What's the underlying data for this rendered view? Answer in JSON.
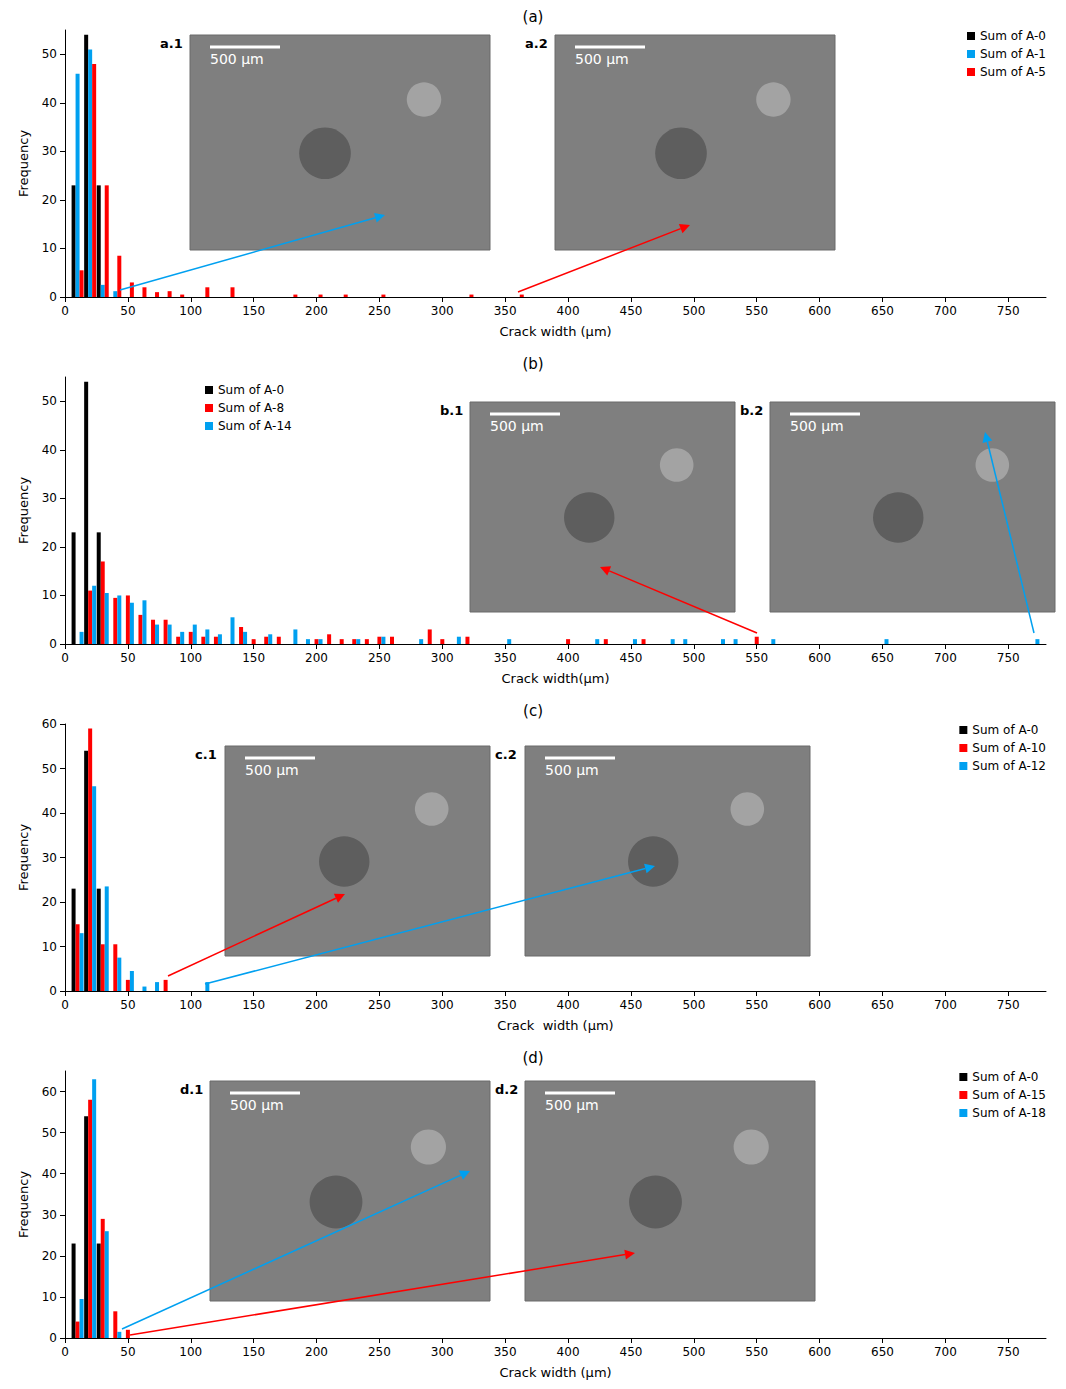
{
  "chart_data": [
    {
      "type": "bar",
      "title": "(a)",
      "x_label": "Crack width (µm)",
      "y_label": "Frequency",
      "xlim": [
        0,
        780
      ],
      "xticks": [
        0,
        50,
        100,
        150,
        200,
        250,
        300,
        350,
        400,
        450,
        500,
        550,
        600,
        650,
        700,
        750
      ],
      "ylim": [
        0,
        55
      ],
      "yticks": [
        0,
        10,
        20,
        30,
        40,
        50
      ],
      "grid": false,
      "legend": "upper right",
      "insets": [
        {
          "label": "a.1",
          "scale_bar": "500 µm"
        },
        {
          "label": "a.2",
          "scale_bar": "500 µm"
        }
      ],
      "series": [
        {
          "name": "Sum of A-0",
          "color": "#000000",
          "x": [
            10,
            20,
            30
          ],
          "values": [
            23,
            54,
            23
          ]
        },
        {
          "name": "Sum of A-1",
          "color": "#00a0f0",
          "x": [
            10,
            20,
            30,
            40
          ],
          "values": [
            46,
            51,
            2.5,
            1.2
          ]
        },
        {
          "name": "Sum of A-5",
          "color": "#ff0000",
          "x": [
            10,
            20,
            30,
            40,
            50,
            60,
            70,
            80,
            90,
            110,
            130,
            180,
            200,
            220,
            250,
            320,
            360
          ],
          "values": [
            5.5,
            48,
            23,
            8.5,
            3,
            2,
            1,
            1.2,
            0.5,
            2,
            2,
            0.5,
            0.5,
            0.5,
            0.5,
            0.5,
            0.5
          ]
        }
      ]
    },
    {
      "type": "bar",
      "title": "(b)",
      "x_label": "Crack width(µm)",
      "y_label": "Frequency",
      "xlim": [
        0,
        780
      ],
      "xticks": [
        0,
        50,
        100,
        150,
        200,
        250,
        300,
        350,
        400,
        450,
        500,
        550,
        600,
        650,
        700,
        750
      ],
      "ylim": [
        0,
        55
      ],
      "yticks": [
        0,
        10,
        20,
        30,
        40,
        50
      ],
      "grid": false,
      "legend": "upper left",
      "insets": [
        {
          "label": "b.1",
          "scale_bar": "500 µm"
        },
        {
          "label": "b.2",
          "scale_bar": "500 µm"
        }
      ],
      "series": [
        {
          "name": "Sum of A-0",
          "color": "#000000",
          "x": [
            10,
            20,
            30
          ],
          "values": [
            23,
            54,
            23
          ]
        },
        {
          "name": "Sum of A-8",
          "color": "#ff0000",
          "x": [
            20,
            30,
            40,
            50,
            60,
            70,
            80,
            90,
            100,
            110,
            120,
            140,
            150,
            160,
            170,
            200,
            210,
            220,
            230,
            240,
            250,
            260,
            290,
            300,
            320,
            400,
            430,
            460,
            550
          ],
          "values": [
            11,
            17,
            9.5,
            10,
            6,
            5,
            5,
            1.5,
            2.5,
            1.5,
            1.5,
            3.5,
            1,
            1.5,
            1.5,
            1,
            2,
            1,
            1,
            1,
            1.5,
            1.5,
            3,
            1,
            1.5,
            1,
            1,
            1,
            1.5
          ]
        },
        {
          "name": "Sum of A-14",
          "color": "#00a0f0",
          "x": [
            10,
            20,
            30,
            40,
            50,
            60,
            70,
            80,
            90,
            100,
            110,
            120,
            130,
            140,
            160,
            180,
            190,
            200,
            230,
            250,
            280,
            310,
            350,
            420,
            450,
            480,
            490,
            520,
            530,
            560,
            650,
            770
          ],
          "values": [
            2.5,
            12,
            10.5,
            10,
            8.5,
            9,
            4,
            4,
            2.5,
            4,
            3,
            2,
            5.5,
            2.5,
            2,
            3,
            1,
            1,
            1,
            1.5,
            1,
            1.5,
            1,
            1,
            1,
            1,
            1,
            1,
            1,
            1,
            1,
            1
          ]
        }
      ]
    },
    {
      "type": "bar",
      "title": "(c)",
      "x_label": "Crack  width (µm)",
      "y_label": "Frequency",
      "xlim": [
        0,
        780
      ],
      "xticks": [
        0,
        50,
        100,
        150,
        200,
        250,
        300,
        350,
        400,
        450,
        500,
        550,
        600,
        650,
        700,
        750
      ],
      "ylim": [
        0,
        60
      ],
      "yticks": [
        0,
        10,
        20,
        30,
        40,
        50,
        60
      ],
      "grid": false,
      "legend": "upper right",
      "insets": [
        {
          "label": "c.1",
          "scale_bar": "500 µm"
        },
        {
          "label": "c.2",
          "scale_bar": "500 µm"
        }
      ],
      "series": [
        {
          "name": "Sum of A-0",
          "color": "#000000",
          "x": [
            10,
            20,
            30
          ],
          "values": [
            23,
            54,
            23
          ]
        },
        {
          "name": "Sum of A-10",
          "color": "#ff0000",
          "x": [
            10,
            20,
            30,
            40,
            50,
            80
          ],
          "values": [
            15,
            59,
            10.5,
            10.5,
            2.5,
            2.5
          ]
        },
        {
          "name": "Sum of A-12",
          "color": "#00a0f0",
          "x": [
            10,
            20,
            30,
            40,
            50,
            60,
            70,
            110
          ],
          "values": [
            13,
            46,
            23.5,
            7.5,
            4.5,
            1,
            2,
            2
          ]
        }
      ]
    },
    {
      "type": "bar",
      "title": "(d)",
      "x_label": "Crack width (µm)",
      "y_label": "Frequency",
      "xlim": [
        0,
        780
      ],
      "xticks": [
        0,
        50,
        100,
        150,
        200,
        250,
        300,
        350,
        400,
        450,
        500,
        550,
        600,
        650,
        700,
        750
      ],
      "ylim": [
        0,
        65
      ],
      "yticks": [
        0,
        10,
        20,
        30,
        40,
        50,
        60
      ],
      "grid": false,
      "legend": "upper right",
      "insets": [
        {
          "label": "d.1",
          "scale_bar": "500 µm"
        },
        {
          "label": "d.2",
          "scale_bar": "500 µm"
        }
      ],
      "series": [
        {
          "name": "Sum of A-0",
          "color": "#000000",
          "x": [
            10,
            20,
            30
          ],
          "values": [
            23,
            54,
            23
          ]
        },
        {
          "name": "Sum of A-15",
          "color": "#ff0000",
          "x": [
            10,
            20,
            30,
            40,
            50
          ],
          "values": [
            4,
            58,
            29,
            6.5,
            2
          ]
        },
        {
          "name": "Sum of A-18",
          "color": "#00a0f0",
          "x": [
            10,
            20,
            30,
            40
          ],
          "values": [
            9.5,
            63,
            26,
            1.5
          ]
        }
      ]
    }
  ]
}
